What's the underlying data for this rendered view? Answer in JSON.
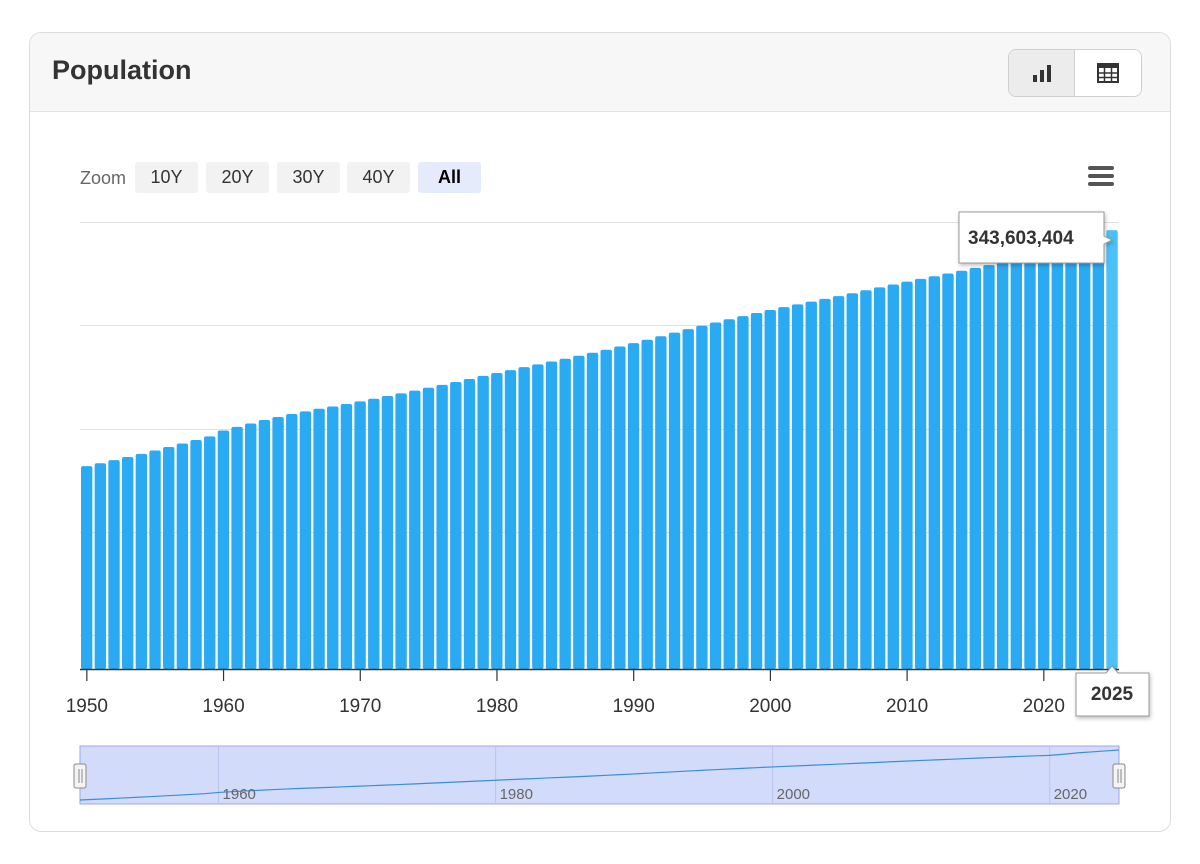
{
  "header": {
    "title": "Population"
  },
  "toggle": {
    "chart_icon": "bar-chart-icon",
    "table_icon": "table-icon"
  },
  "zoom": {
    "label": "Zoom",
    "buttons": [
      {
        "label": "10Y",
        "active": false
      },
      {
        "label": "20Y",
        "active": false
      },
      {
        "label": "30Y",
        "active": false
      },
      {
        "label": "40Y",
        "active": false
      },
      {
        "label": "All",
        "active": true
      }
    ]
  },
  "menu": {
    "icon": "hamburger-menu-icon"
  },
  "colors": {
    "bar": "#29aaf2",
    "bar_highlight": "#4cc0f8",
    "navigator_fill": "#d3dbfb",
    "navigator_line": "#3a8fd4"
  },
  "tooltip": {
    "value": "343,603,404",
    "year": "2025"
  },
  "chart_data": {
    "type": "bar",
    "x_start": 1950,
    "x_end": 2025,
    "xticks": [
      "1950",
      "1960",
      "1970",
      "1980",
      "1990",
      "2000",
      "2010",
      "2020"
    ],
    "ylim": [
      0,
      350000000
    ],
    "values": [
      158804396,
      161122128,
      163502554,
      165954860,
      168461384,
      171099962,
      173800742,
      176542580,
      179353652,
      182182108,
      186720571,
      189592004,
      192270808,
      194921698,
      197353634,
      199616448,
      201737210,
      203724476,
      205577010,
      207490560,
      209513340,
      211616932,
      213768776,
      215848196,
      217997060,
      220207390,
      222455920,
      224749820,
      227079690,
      229498020,
      231808960,
      234047000,
      236348220,
      238566310,
      240759180,
      242971680,
      245253510,
      247578060,
      249993870,
      252540720,
      255124300,
      257807120,
      260587760,
      263404960,
      266131920,
      268733990,
      271306880,
      273840140,
      276277910,
      278705600,
      281072070,
      283301630,
      285468020,
      287617860,
      289850180,
      292003810,
      294237510,
      296528120,
      298820330,
      301091200,
      303344140,
      305449490,
      307541970,
      309690780,
      311877010,
      314058920,
      316186700,
      318256780,
      320276460,
      322074140,
      323690980,
      328000000,
      333000000,
      336500000,
      340100000,
      343603404
    ]
  },
  "navigator": {
    "ticks": [
      "1960",
      "1980",
      "2000",
      "2020"
    ]
  }
}
